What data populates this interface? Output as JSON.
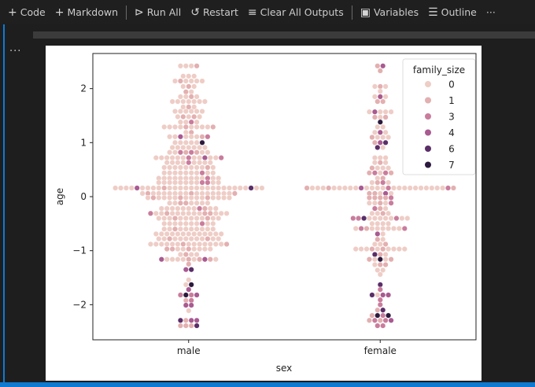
{
  "toolbar": {
    "items": [
      {
        "label": "Code",
        "icon": "plus-icon"
      },
      {
        "label": "Markdown",
        "icon": "plus-icon"
      },
      {
        "label": "Run All",
        "icon": "run-all-icon"
      },
      {
        "label": "Restart",
        "icon": "restart-icon"
      },
      {
        "label": "Clear All Outputs",
        "icon": "clear-outputs-icon"
      },
      {
        "label": "Variables",
        "icon": "variables-icon"
      },
      {
        "label": "Outline",
        "icon": "outline-icon"
      }
    ],
    "more": "···"
  },
  "cell": {
    "more": "···"
  },
  "colors": {
    "accent": "#0e7ad1",
    "background": "#1e1e1e"
  },
  "chart_data": {
    "type": "swarm",
    "xlabel": "sex",
    "ylabel": "age",
    "categories": [
      "male",
      "female"
    ],
    "ylim": [
      -2.65,
      2.65
    ],
    "yticks": [
      -2,
      -1,
      0,
      1,
      2
    ],
    "ytick_labels": [
      "−2",
      "−1",
      "0",
      "1",
      "2"
    ],
    "grid": false,
    "legend": {
      "title": "family_size",
      "placement": "top-right",
      "entries": [
        {
          "label": "0",
          "value": 0,
          "color": "#eecdc6"
        },
        {
          "label": "1",
          "value": 1,
          "color": "#e3afb0"
        },
        {
          "label": "3",
          "value": 3,
          "color": "#c97c9c"
        },
        {
          "label": "4",
          "value": 4,
          "color": "#a85a91"
        },
        {
          "label": "6",
          "value": 6,
          "color": "#5a2e68"
        },
        {
          "label": "7",
          "value": 7,
          "color": "#2b1a3d"
        }
      ]
    },
    "series": [
      {
        "category": "male",
        "rows": [
          [
            2.42,
            "0001"
          ],
          [
            2.23,
            "000"
          ],
          [
            2.14,
            "010000"
          ],
          [
            2.04,
            "010"
          ],
          [
            1.94,
            "10"
          ],
          [
            1.85,
            "0010"
          ],
          [
            1.76,
            "0000000"
          ],
          [
            1.66,
            "010"
          ],
          [
            1.58,
            "000000"
          ],
          [
            1.48,
            "01010"
          ],
          [
            1.38,
            "0030"
          ],
          [
            1.29,
            "0000100001"
          ],
          [
            1.19,
            "01"
          ],
          [
            1.11,
            "00400013"
          ],
          [
            1.0,
            "000007"
          ],
          [
            0.91,
            "0000000"
          ],
          [
            0.82,
            "00313100"
          ],
          [
            0.72,
            "0000003004003"
          ],
          [
            0.63,
            "000030000"
          ],
          [
            0.54,
            "0000000010"
          ],
          [
            0.44,
            "0000000300"
          ],
          [
            0.34,
            "000000000300"
          ],
          [
            0.26,
            "000000003300"
          ],
          [
            0.16,
            "0000400001000000000000000600"
          ],
          [
            0.06,
            "010000000100000001"
          ],
          [
            -0.02,
            "0100001000010000"
          ],
          [
            -0.12,
            "00110000"
          ],
          [
            -0.22,
            "00000003100"
          ],
          [
            -0.31,
            "300100000011000"
          ],
          [
            -0.4,
            "000100000100"
          ],
          [
            -0.5,
            "0000000300"
          ],
          [
            -0.6,
            "0010000000"
          ],
          [
            -0.69,
            "0000000000000"
          ],
          [
            -0.78,
            "001000000100"
          ],
          [
            -0.88,
            "000000100000001"
          ],
          [
            -0.97,
            "110010000"
          ],
          [
            -1.07,
            "0100"
          ],
          [
            -1.16,
            "40000101410"
          ],
          [
            -1.25,
            "1"
          ],
          [
            -1.35,
            "46"
          ],
          [
            -1.54,
            "0"
          ],
          [
            -1.63,
            "07"
          ],
          [
            -1.72,
            "4"
          ],
          [
            -1.82,
            "3734"
          ],
          [
            -1.92,
            "13"
          ],
          [
            -2.01,
            "44"
          ],
          [
            -2.11,
            "0"
          ],
          [
            -2.29,
            "6144"
          ],
          [
            -2.39,
            "1116"
          ]
        ]
      },
      {
        "category": "female",
        "rows": [
          [
            2.42,
            "14"
          ],
          [
            2.33,
            "1"
          ],
          [
            2.04,
            "010"
          ],
          [
            1.95,
            "0"
          ],
          [
            1.85,
            "040"
          ],
          [
            1.76,
            "11"
          ],
          [
            1.57,
            "04000"
          ],
          [
            1.47,
            "101"
          ],
          [
            1.38,
            "7"
          ],
          [
            1.29,
            "00"
          ],
          [
            1.19,
            "040"
          ],
          [
            1.1,
            "1000"
          ],
          [
            1.0,
            "146"
          ],
          [
            0.91,
            "60"
          ],
          [
            0.72,
            "000"
          ],
          [
            0.63,
            "010"
          ],
          [
            0.53,
            "1000"
          ],
          [
            0.44,
            "13031"
          ],
          [
            0.34,
            "01"
          ],
          [
            0.26,
            "0130"
          ],
          [
            0.16,
            "1000100000400003000000000031"
          ],
          [
            0.06,
            "11040"
          ],
          [
            -0.02,
            "11113"
          ],
          [
            -0.12,
            "00103"
          ],
          [
            -0.22,
            "310"
          ],
          [
            -0.31,
            "0010"
          ],
          [
            -0.4,
            "33600000300"
          ],
          [
            -0.5,
            "0000"
          ],
          [
            -0.59,
            "0310000003"
          ],
          [
            -0.69,
            "40"
          ],
          [
            -0.79,
            "10"
          ],
          [
            -0.88,
            "001"
          ],
          [
            -0.97,
            "0001010000"
          ],
          [
            -1.07,
            "610"
          ],
          [
            -1.16,
            "10701"
          ],
          [
            -1.26,
            "011"
          ],
          [
            -1.36,
            "00"
          ],
          [
            -1.44,
            "0"
          ],
          [
            -1.63,
            "6"
          ],
          [
            -1.72,
            "3"
          ],
          [
            -1.82,
            "6044"
          ],
          [
            -1.91,
            "3"
          ],
          [
            -2.0,
            "3"
          ],
          [
            -2.1,
            "16"
          ],
          [
            -2.2,
            "1737"
          ],
          [
            -2.29,
            "13134"
          ],
          [
            -2.39,
            "33"
          ]
        ]
      }
    ]
  }
}
